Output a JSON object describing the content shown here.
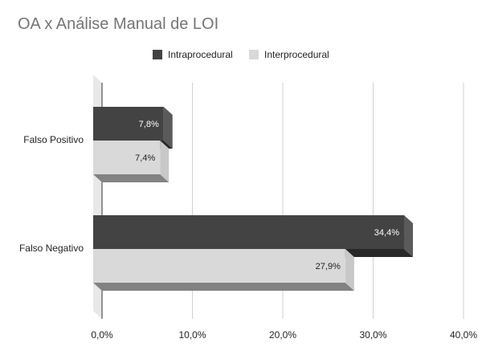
{
  "chart_data": {
    "type": "bar",
    "orientation": "horizontal",
    "style": "3d",
    "title": "OA x Análise Manual de LOI",
    "categories": [
      "Falso Positivo",
      "Falso Negativo"
    ],
    "series": [
      {
        "name": "Intraprocedural",
        "values": [
          7.8,
          34.4
        ],
        "labels": [
          "7,8%",
          "34,4%"
        ],
        "color": "#434343"
      },
      {
        "name": "Interprocedural",
        "values": [
          7.4,
          27.9
        ],
        "labels": [
          "7,4%",
          "27,9%"
        ],
        "color": "#d9d9d9"
      }
    ],
    "x_ticks": [
      0,
      10,
      20,
      30,
      40
    ],
    "x_tick_labels": [
      "0,0%",
      "10,0%",
      "20,0%",
      "30,0%",
      "40,0%"
    ],
    "xlim": [
      0,
      40
    ],
    "grid": true,
    "legend_position": "top-center"
  }
}
